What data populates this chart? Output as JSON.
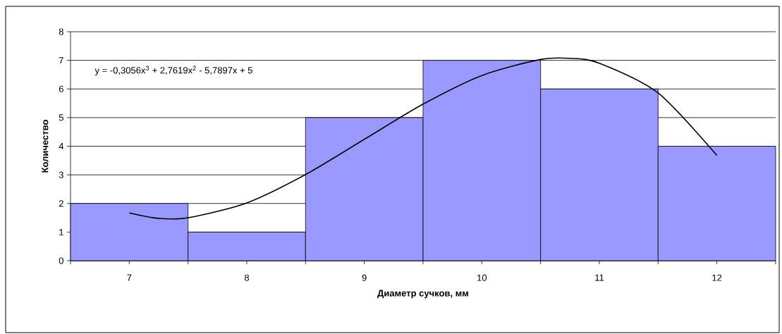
{
  "chart_data": {
    "type": "bar",
    "xlabel": "Диаметр сучков, мм",
    "ylabel": "Количество",
    "x": [
      7,
      8,
      9,
      10,
      11,
      12
    ],
    "series": [
      {
        "color": "#9999ff",
        "values": [
          2,
          1,
          5,
          7,
          6,
          4
        ]
      },
      {
        "type": "line",
        "color": "#000000",
        "x": [
          7,
          7.25,
          7.5,
          8,
          8.5,
          9,
          9.5,
          10,
          10.5,
          10.75,
          11,
          11.5,
          12
        ],
        "values": [
          1.67,
          1.48,
          1.5,
          2.02,
          3.01,
          4.24,
          5.47,
          6.47,
          7.03,
          7.07,
          6.9,
          5.86,
          3.68
        ]
      }
    ],
    "xlim": [
      6.5,
      12.5
    ],
    "ylim": [
      0,
      8
    ],
    "xticks": [
      {
        "value": 6.5,
        "label": null
      },
      7,
      {
        "value": 7.5,
        "label": null
      },
      8,
      {
        "value": 8.5,
        "label": null
      },
      9,
      {
        "value": 9.5,
        "label": null
      },
      10,
      {
        "value": 10.5,
        "label": null
      },
      11,
      {
        "value": 11.5,
        "label": null
      },
      12,
      {
        "value": 12.5,
        "label": null
      }
    ],
    "yticks": [
      0,
      1,
      2,
      3,
      4,
      5,
      6,
      7,
      8
    ],
    "grid": "y",
    "annotations": [
      "y = -0,3056x$^{3}$ + 2,7619x$^{2}$ - 5,7897x + 5"
    ]
  }
}
